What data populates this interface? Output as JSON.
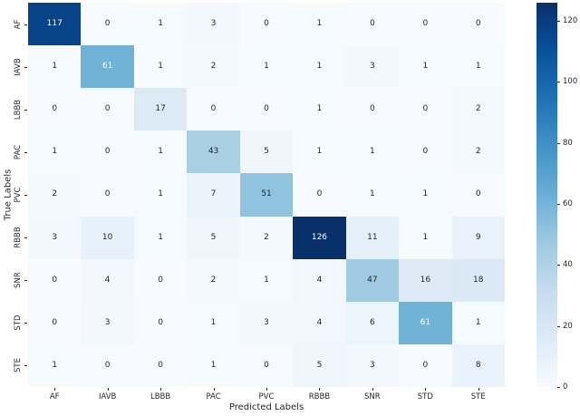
{
  "colors": {
    "background": "#ffffff",
    "annotation_dark": "#262626",
    "annotation_light": "#ffffff",
    "tick_color": "#262626"
  },
  "chart_data": {
    "type": "heatmap",
    "title": "",
    "xlabel": "Predicted Labels",
    "ylabel": "True Labels",
    "categories": [
      "AF",
      "IAVB",
      "LBBB",
      "PAC",
      "PVC",
      "RBBB",
      "SNR",
      "STD",
      "STE"
    ],
    "matrix": [
      [
        117,
        0,
        1,
        3,
        0,
        1,
        0,
        0,
        0
      ],
      [
        1,
        61,
        1,
        2,
        1,
        1,
        3,
        1,
        1
      ],
      [
        0,
        0,
        17,
        0,
        0,
        1,
        0,
        0,
        2
      ],
      [
        1,
        0,
        1,
        43,
        5,
        1,
        1,
        0,
        2
      ],
      [
        2,
        0,
        1,
        7,
        51,
        0,
        1,
        1,
        0
      ],
      [
        3,
        10,
        1,
        5,
        2,
        126,
        11,
        1,
        9
      ],
      [
        0,
        4,
        0,
        2,
        1,
        4,
        47,
        16,
        18
      ],
      [
        0,
        3,
        0,
        1,
        3,
        4,
        6,
        61,
        1
      ],
      [
        1,
        0,
        0,
        1,
        0,
        5,
        3,
        0,
        8
      ]
    ],
    "vmin": 0,
    "vmax": 126,
    "colormap": "Blues",
    "colormap_stops": [
      "#f7fbff",
      "#deebf7",
      "#c6dbef",
      "#9ecae1",
      "#6baed6",
      "#4292c6",
      "#2171b5",
      "#08519c",
      "#08306b"
    ],
    "colorbar_ticks": [
      0,
      20,
      40,
      60,
      80,
      100,
      120
    ],
    "legend_position": "right-colorbar",
    "grid": false
  }
}
